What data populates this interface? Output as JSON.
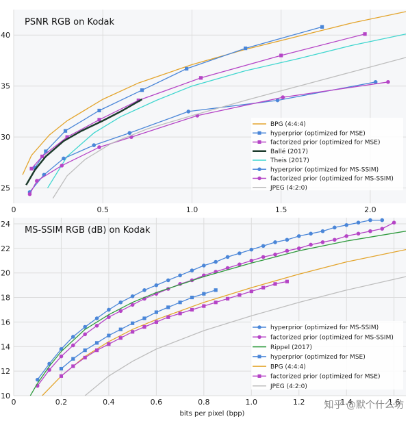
{
  "watermark": "知乎 @默个什么坊",
  "chart_data": [
    {
      "type": "line",
      "title": "PSNR RGB on Kodak",
      "xlabel": "",
      "ylabel": "",
      "xlim": [
        0,
        2.2
      ],
      "ylim": [
        23.5,
        42.5
      ],
      "xticks": [
        0,
        0.5,
        1,
        1.5,
        2
      ],
      "xtick_labels": [
        "0",
        "0.5",
        "1.0",
        "1.5",
        "2.0"
      ],
      "yticks": [
        25,
        30,
        35,
        40
      ],
      "grid": true,
      "legend_position": "lower-right",
      "series": [
        {
          "name": "BPG (4:4:4)",
          "color": "#e3a42b",
          "marker": "none",
          "x": [
            0.05,
            0.1,
            0.2,
            0.3,
            0.5,
            0.7,
            1.0,
            1.3,
            1.6,
            1.9,
            2.2
          ],
          "y": [
            26.3,
            28.2,
            30.2,
            31.6,
            33.7,
            35.3,
            37.1,
            38.6,
            39.9,
            41.2,
            42.3
          ]
        },
        {
          "name": "hyperprior (optimized for MSE)",
          "color": "#4a86d8",
          "marker": "square",
          "x": [
            0.12,
            0.18,
            0.29,
            0.48,
            0.72,
            0.97,
            1.3,
            1.73
          ],
          "y": [
            27.0,
            28.6,
            30.6,
            32.6,
            34.6,
            36.7,
            38.7,
            40.8
          ]
        },
        {
          "name": "factorized prior (optimized for MSE)",
          "color": "#b544c6",
          "marker": "square",
          "x": [
            0.1,
            0.16,
            0.3,
            0.48,
            0.7,
            1.05,
            1.5,
            1.97
          ],
          "y": [
            26.9,
            28.1,
            30.0,
            31.7,
            33.6,
            35.8,
            38.0,
            40.1
          ]
        },
        {
          "name": "Ballé (2017)",
          "color": "#1c3a2c",
          "marker": "none",
          "line_width": 2.5,
          "x": [
            0.07,
            0.12,
            0.18,
            0.28,
            0.38,
            0.5,
            0.6,
            0.72
          ],
          "y": [
            25.3,
            26.8,
            28.1,
            29.6,
            30.6,
            31.6,
            32.5,
            33.7
          ]
        },
        {
          "name": "Theis (2017)",
          "color": "#3fd6cf",
          "marker": "none",
          "x": [
            0.19,
            0.3,
            0.45,
            0.6,
            0.8,
            1.0,
            1.3,
            1.6,
            1.9,
            2.2
          ],
          "y": [
            25.0,
            28.1,
            30.4,
            32.0,
            33.6,
            35.0,
            36.5,
            37.7,
            39.0,
            40.1
          ]
        },
        {
          "name": "hyperprior (optimized for MS-SSIM)",
          "color": "#4a86d8",
          "marker": "circle",
          "x": [
            0.09,
            0.17,
            0.28,
            0.45,
            0.65,
            0.98,
            1.48,
            2.03
          ],
          "y": [
            24.6,
            26.3,
            27.9,
            29.2,
            30.4,
            32.5,
            33.6,
            35.4
          ]
        },
        {
          "name": "factorized prior (optimized for MS-SSIM)",
          "color": "#b544c6",
          "marker": "circle",
          "x": [
            0.09,
            0.13,
            0.27,
            0.48,
            0.66,
            1.03,
            1.51,
            2.1
          ],
          "y": [
            24.4,
            25.7,
            27.2,
            29.0,
            30.0,
            32.1,
            33.9,
            35.4
          ]
        },
        {
          "name": "JPEG (4:2:0)",
          "color": "#bdbdbd",
          "marker": "none",
          "x": [
            0.22,
            0.3,
            0.4,
            0.55,
            0.75,
            1.0,
            1.3,
            1.6,
            1.9,
            2.2
          ],
          "y": [
            24.0,
            26.2,
            27.8,
            29.4,
            30.8,
            32.1,
            33.6,
            35.0,
            36.4,
            37.8
          ]
        }
      ]
    },
    {
      "type": "line",
      "title": "MS-SSIM RGB (dB) on Kodak",
      "xlabel": "bits per pixel (bpp)",
      "ylabel": "",
      "xlim": [
        0,
        1.65
      ],
      "ylim": [
        10,
        24.5
      ],
      "xticks": [
        0,
        0.2,
        0.4,
        0.6,
        0.8,
        1.0,
        1.2,
        1.4,
        1.6
      ],
      "xtick_labels": [
        "0",
        "0.2",
        "0.4",
        "0.6",
        "0.8",
        "1.0",
        "1.2",
        "1.4",
        "1.6"
      ],
      "yticks": [
        10,
        12,
        14,
        16,
        18,
        20,
        22,
        24
      ],
      "grid": true,
      "legend_position": "lower-right",
      "series": [
        {
          "name": "hyperprior (optimized for MS-SSIM)",
          "color": "#4a86d8",
          "marker": "circle",
          "x": [
            0.1,
            0.15,
            0.2,
            0.25,
            0.3,
            0.35,
            0.4,
            0.45,
            0.5,
            0.55,
            0.6,
            0.65,
            0.7,
            0.75,
            0.8,
            0.85,
            0.9,
            0.95,
            1.0,
            1.05,
            1.1,
            1.15,
            1.2,
            1.25,
            1.3,
            1.35,
            1.4,
            1.45,
            1.5,
            1.55
          ],
          "y": [
            11.3,
            12.6,
            13.8,
            14.8,
            15.6,
            16.3,
            17.0,
            17.6,
            18.1,
            18.6,
            19.0,
            19.4,
            19.8,
            20.2,
            20.6,
            20.9,
            21.3,
            21.6,
            21.9,
            22.2,
            22.5,
            22.7,
            23.0,
            23.2,
            23.4,
            23.7,
            23.9,
            24.1,
            24.3,
            24.3
          ]
        },
        {
          "name": "factorized prior (optimized for MS-SSIM)",
          "color": "#b544c6",
          "marker": "circle",
          "x": [
            0.1,
            0.15,
            0.2,
            0.25,
            0.3,
            0.35,
            0.4,
            0.45,
            0.5,
            0.55,
            0.6,
            0.65,
            0.7,
            0.75,
            0.8,
            0.85,
            0.9,
            0.95,
            1.0,
            1.05,
            1.1,
            1.15,
            1.2,
            1.25,
            1.3,
            1.35,
            1.4,
            1.45,
            1.5,
            1.55,
            1.6
          ],
          "y": [
            10.8,
            12.1,
            13.2,
            14.1,
            15.0,
            15.7,
            16.4,
            16.9,
            17.4,
            17.9,
            18.3,
            18.7,
            19.1,
            19.4,
            19.8,
            20.1,
            20.4,
            20.7,
            21.0,
            21.3,
            21.5,
            21.8,
            22.0,
            22.3,
            22.5,
            22.7,
            23.0,
            23.2,
            23.4,
            23.6,
            24.1
          ]
        },
        {
          "name": "Rippel (2017)",
          "color": "#2e9a3c",
          "marker": "none",
          "x": [
            0.07,
            0.1,
            0.15,
            0.2,
            0.3,
            0.4,
            0.5,
            0.6,
            0.8,
            1.0,
            1.2,
            1.4,
            1.65
          ],
          "y": [
            10.0,
            11.0,
            12.4,
            13.6,
            15.4,
            16.6,
            17.6,
            18.4,
            19.7,
            20.8,
            21.8,
            22.6,
            23.4
          ]
        },
        {
          "name": "hyperprior (optimized for MSE)",
          "color": "#4a86d8",
          "marker": "square",
          "x": [
            0.2,
            0.25,
            0.3,
            0.35,
            0.4,
            0.45,
            0.5,
            0.55,
            0.6,
            0.65,
            0.7,
            0.75,
            0.8,
            0.85
          ],
          "y": [
            12.2,
            13.0,
            13.7,
            14.3,
            14.9,
            15.4,
            15.9,
            16.3,
            16.8,
            17.2,
            17.6,
            18.0,
            18.3,
            18.6
          ]
        },
        {
          "name": "BPG (4:4:4)",
          "color": "#e3a42b",
          "marker": "none",
          "x": [
            0.12,
            0.2,
            0.3,
            0.4,
            0.5,
            0.6,
            0.8,
            1.0,
            1.2,
            1.4,
            1.65
          ],
          "y": [
            10.0,
            11.6,
            13.2,
            14.4,
            15.4,
            16.2,
            17.6,
            18.8,
            19.9,
            20.9,
            21.9
          ]
        },
        {
          "name": "factorized prior (optimized for MSE)",
          "color": "#b544c6",
          "marker": "square",
          "x": [
            0.2,
            0.25,
            0.3,
            0.35,
            0.4,
            0.45,
            0.5,
            0.55,
            0.6,
            0.65,
            0.7,
            0.75,
            0.8,
            0.85,
            0.9,
            0.95,
            1.0,
            1.05,
            1.1,
            1.15
          ],
          "y": [
            11.6,
            12.4,
            13.1,
            13.7,
            14.2,
            14.7,
            15.2,
            15.6,
            16.0,
            16.4,
            16.7,
            17.0,
            17.3,
            17.6,
            17.9,
            18.2,
            18.5,
            18.8,
            19.1,
            19.3
          ]
        },
        {
          "name": "JPEG (4:2:0)",
          "color": "#bdbdbd",
          "marker": "none",
          "x": [
            0.3,
            0.4,
            0.5,
            0.6,
            0.8,
            1.0,
            1.2,
            1.4,
            1.65
          ],
          "y": [
            10.0,
            11.6,
            12.8,
            13.8,
            15.3,
            16.5,
            17.6,
            18.6,
            19.7
          ]
        }
      ]
    }
  ]
}
